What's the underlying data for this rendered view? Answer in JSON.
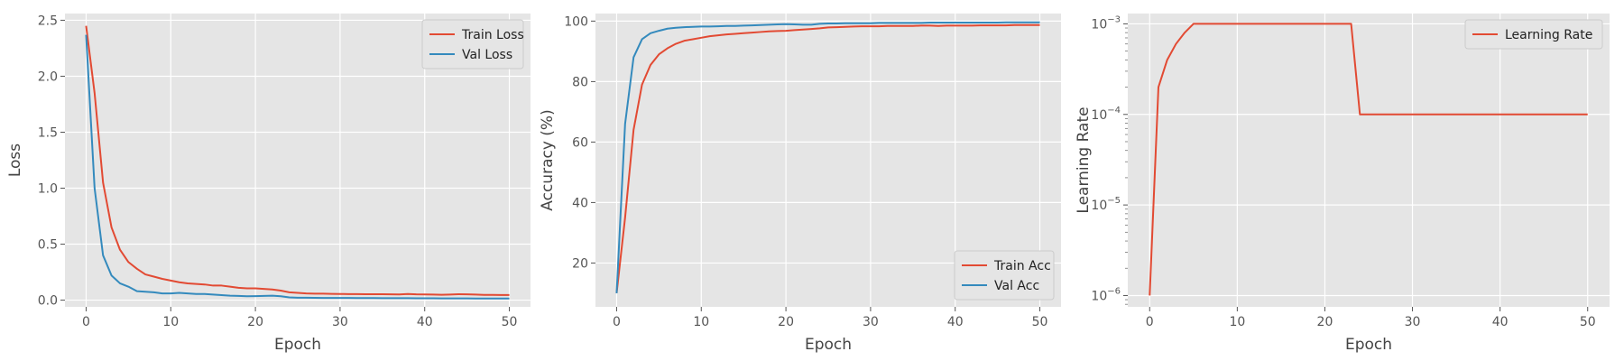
{
  "chart_data": [
    {
      "type": "line",
      "title": "",
      "xlabel": "Epoch",
      "ylabel": "Loss",
      "xlim": [
        -2.5,
        52.5
      ],
      "ylim": [
        -0.06,
        2.56
      ],
      "xticks": [
        0,
        10,
        20,
        30,
        40,
        50
      ],
      "xtick_labels": [
        "0",
        "10",
        "20",
        "30",
        "40",
        "50"
      ],
      "yticks": [
        0,
        0.5,
        1.0,
        1.5,
        2.0,
        2.5
      ],
      "ytick_labels": [
        "0.0",
        "0.5",
        "1.0",
        "1.5",
        "2.0",
        "2.5"
      ],
      "yscale": "linear",
      "grid": true,
      "legend_position": "upper right",
      "series": [
        {
          "name": "Train Loss",
          "color": "#E24A33",
          "x": [
            0,
            1,
            2,
            3,
            4,
            5,
            6,
            7,
            8,
            9,
            10,
            11,
            12,
            13,
            14,
            15,
            16,
            17,
            18,
            19,
            20,
            21,
            22,
            23,
            24,
            25,
            26,
            27,
            28,
            29,
            30,
            31,
            32,
            33,
            34,
            35,
            36,
            37,
            38,
            39,
            40,
            41,
            42,
            43,
            44,
            45,
            46,
            47,
            48,
            49,
            50
          ],
          "y": [
            2.45,
            1.85,
            1.05,
            0.65,
            0.45,
            0.34,
            0.28,
            0.23,
            0.21,
            0.19,
            0.175,
            0.16,
            0.15,
            0.145,
            0.14,
            0.13,
            0.13,
            0.12,
            0.11,
            0.105,
            0.105,
            0.1,
            0.095,
            0.085,
            0.07,
            0.065,
            0.06,
            0.058,
            0.058,
            0.056,
            0.055,
            0.054,
            0.054,
            0.053,
            0.053,
            0.053,
            0.052,
            0.051,
            0.055,
            0.052,
            0.051,
            0.05,
            0.048,
            0.05,
            0.053,
            0.052,
            0.05,
            0.047,
            0.047,
            0.046,
            0.046
          ]
        },
        {
          "name": "Val Loss",
          "color": "#348ABD",
          "x": [
            0,
            1,
            2,
            3,
            4,
            5,
            6,
            7,
            8,
            9,
            10,
            11,
            12,
            13,
            14,
            15,
            16,
            17,
            18,
            19,
            20,
            21,
            22,
            23,
            24,
            25,
            26,
            27,
            28,
            29,
            30,
            31,
            32,
            33,
            34,
            35,
            36,
            37,
            38,
            39,
            40,
            41,
            42,
            43,
            44,
            45,
            46,
            47,
            48,
            49,
            50
          ],
          "y": [
            2.37,
            1.0,
            0.4,
            0.22,
            0.15,
            0.12,
            0.08,
            0.075,
            0.07,
            0.06,
            0.06,
            0.065,
            0.06,
            0.055,
            0.055,
            0.05,
            0.045,
            0.04,
            0.038,
            0.035,
            0.036,
            0.038,
            0.04,
            0.035,
            0.025,
            0.022,
            0.022,
            0.021,
            0.02,
            0.02,
            0.02,
            0.02,
            0.019,
            0.019,
            0.019,
            0.018,
            0.018,
            0.018,
            0.018,
            0.017,
            0.017,
            0.017,
            0.016,
            0.016,
            0.016,
            0.016,
            0.015,
            0.015,
            0.015,
            0.015,
            0.015
          ]
        }
      ]
    },
    {
      "type": "line",
      "title": "",
      "xlabel": "Epoch",
      "ylabel": "Accuracy (%)",
      "xlim": [
        -2.5,
        52.5
      ],
      "ylim": [
        5.5,
        102.5
      ],
      "xticks": [
        0,
        10,
        20,
        30,
        40,
        50
      ],
      "xtick_labels": [
        "0",
        "10",
        "20",
        "30",
        "40",
        "50"
      ],
      "yticks": [
        20,
        40,
        60,
        80,
        100
      ],
      "ytick_labels": [
        "20",
        "40",
        "60",
        "80",
        "100"
      ],
      "yscale": "linear",
      "grid": true,
      "legend_position": "lower right",
      "series": [
        {
          "name": "Train Acc",
          "color": "#E24A33",
          "x": [
            0,
            1,
            2,
            3,
            4,
            5,
            6,
            7,
            8,
            9,
            10,
            11,
            12,
            13,
            14,
            15,
            16,
            17,
            18,
            19,
            20,
            21,
            22,
            23,
            24,
            25,
            26,
            27,
            28,
            29,
            30,
            31,
            32,
            33,
            34,
            35,
            36,
            37,
            38,
            39,
            40,
            41,
            42,
            43,
            44,
            45,
            46,
            47,
            48,
            49,
            50
          ],
          "y": [
            10,
            35,
            64,
            79,
            85.5,
            89,
            91,
            92.5,
            93.5,
            94,
            94.5,
            95,
            95.3,
            95.6,
            95.8,
            96,
            96.2,
            96.4,
            96.6,
            96.7,
            96.8,
            97,
            97.2,
            97.4,
            97.6,
            97.9,
            98,
            98.1,
            98.2,
            98.3,
            98.3,
            98.3,
            98.4,
            98.4,
            98.4,
            98.4,
            98.5,
            98.5,
            98.4,
            98.5,
            98.5,
            98.5,
            98.5,
            98.6,
            98.6,
            98.6,
            98.6,
            98.7,
            98.7,
            98.7,
            98.7
          ]
        },
        {
          "name": "Val Acc",
          "color": "#348ABD",
          "x": [
            0,
            1,
            2,
            3,
            4,
            5,
            6,
            7,
            8,
            9,
            10,
            11,
            12,
            13,
            14,
            15,
            16,
            17,
            18,
            19,
            20,
            21,
            22,
            23,
            24,
            25,
            26,
            27,
            28,
            29,
            30,
            31,
            32,
            33,
            34,
            35,
            36,
            37,
            38,
            39,
            40,
            41,
            42,
            43,
            44,
            45,
            46,
            47,
            48,
            49,
            50
          ],
          "y": [
            10,
            66,
            88,
            94,
            96,
            96.8,
            97.5,
            97.8,
            98,
            98.1,
            98.2,
            98.2,
            98.3,
            98.4,
            98.4,
            98.5,
            98.6,
            98.7,
            98.8,
            98.9,
            99,
            98.9,
            98.8,
            98.8,
            99.1,
            99.2,
            99.2,
            99.3,
            99.3,
            99.3,
            99.3,
            99.4,
            99.4,
            99.4,
            99.4,
            99.4,
            99.4,
            99.5,
            99.5,
            99.5,
            99.5,
            99.5,
            99.5,
            99.5,
            99.5,
            99.5,
            99.6,
            99.6,
            99.6,
            99.6,
            99.6
          ]
        }
      ]
    },
    {
      "type": "line",
      "title": "",
      "xlabel": "Epoch",
      "ylabel": "Learning Rate",
      "xlim": [
        -2.5,
        52.5
      ],
      "ylim": [
        7.5e-07,
        0.0013
      ],
      "xticks": [
        0,
        10,
        20,
        30,
        40,
        50
      ],
      "xtick_labels": [
        "0",
        "10",
        "20",
        "30",
        "40",
        "50"
      ],
      "yticks": [
        1e-06,
        1e-05,
        0.0001,
        0.001
      ],
      "ytick_labels": [
        [
          "10",
          "−6"
        ],
        [
          "10",
          "−5"
        ],
        [
          "10",
          "−4"
        ],
        [
          "10",
          "−3"
        ]
      ],
      "yscale": "log",
      "grid": true,
      "legend_position": "upper right",
      "series": [
        {
          "name": "Learning Rate",
          "color": "#E24A33",
          "x": [
            0,
            1,
            2,
            3,
            4,
            5,
            6,
            7,
            8,
            9,
            10,
            11,
            12,
            13,
            14,
            15,
            16,
            17,
            18,
            19,
            20,
            21,
            22,
            23,
            24,
            25,
            26,
            27,
            28,
            29,
            30,
            31,
            32,
            33,
            34,
            35,
            36,
            37,
            38,
            39,
            40,
            41,
            42,
            43,
            44,
            45,
            46,
            47,
            48,
            49,
            50
          ],
          "y": [
            1e-06,
            0.0002,
            0.0004,
            0.0006,
            0.0008,
            0.001,
            0.001,
            0.001,
            0.001,
            0.001,
            0.001,
            0.001,
            0.001,
            0.001,
            0.001,
            0.001,
            0.001,
            0.001,
            0.001,
            0.001,
            0.001,
            0.001,
            0.001,
            0.001,
            0.0001,
            0.0001,
            0.0001,
            0.0001,
            0.0001,
            0.0001,
            0.0001,
            0.0001,
            0.0001,
            0.0001,
            0.0001,
            0.0001,
            0.0001,
            0.0001,
            0.0001,
            0.0001,
            0.0001,
            0.0001,
            0.0001,
            0.0001,
            0.0001,
            0.0001,
            0.0001,
            0.0001,
            0.0001,
            0.0001,
            0.0001
          ]
        }
      ]
    }
  ]
}
